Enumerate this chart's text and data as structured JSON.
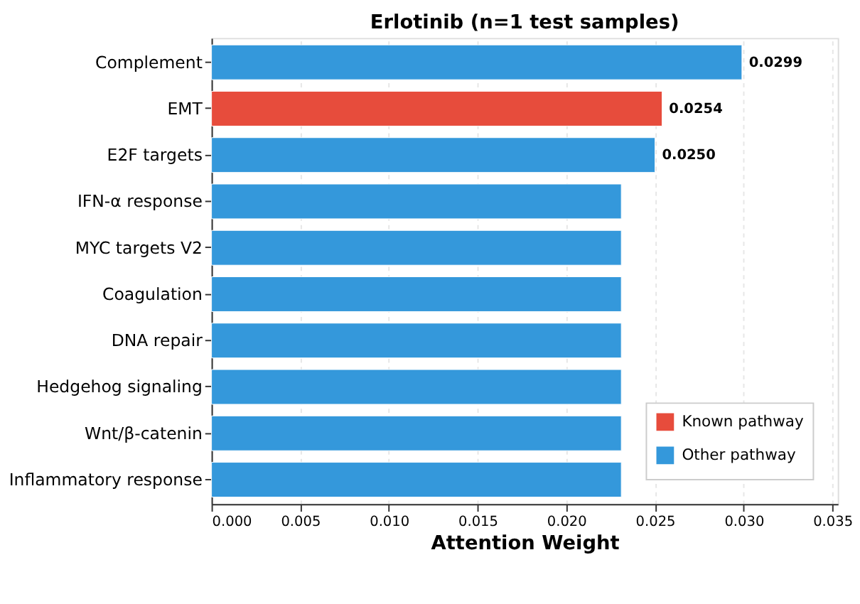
{
  "chart_data": {
    "type": "bar",
    "orientation": "horizontal",
    "title": "Erlotinib (n=1 test samples)",
    "xlabel": "Attention Weight",
    "categories": [
      "Complement",
      "EMT",
      "E2F targets",
      "IFN-α response",
      "MYC targets V2",
      "Coagulation",
      "DNA repair",
      "Hedgehog signaling",
      "Wnt/β-catenin",
      "Inflammatory response"
    ],
    "series": [
      {
        "name": "Known pathway",
        "color": "#e74c3c",
        "values": [
          null,
          0.0254,
          null,
          null,
          null,
          null,
          null,
          null,
          null,
          null
        ],
        "value_labels": [
          null,
          "0.0254",
          null,
          null,
          null,
          null,
          null,
          null,
          null,
          null
        ]
      },
      {
        "name": "Other pathway",
        "color": "#3498db",
        "values": [
          0.0299,
          null,
          0.025,
          0.0231,
          0.0231,
          0.0231,
          0.0231,
          0.0231,
          0.0231,
          0.0231
        ],
        "value_labels": [
          "0.0299",
          null,
          "0.0250",
          null,
          null,
          null,
          null,
          null,
          null,
          null
        ]
      }
    ],
    "xlim": [
      0,
      0.0353
    ],
    "xticks": [
      {
        "value": 0,
        "label": "0.000"
      },
      {
        "value": 0.005,
        "label": "0.005"
      },
      {
        "value": 0.01,
        "label": "0.010"
      },
      {
        "value": 0.015,
        "label": "0.015"
      },
      {
        "value": 0.02,
        "label": "0.020"
      },
      {
        "value": 0.025,
        "label": "0.025"
      },
      {
        "value": 0.03,
        "label": "0.030"
      },
      {
        "value": 0.035,
        "label": "0.035"
      }
    ],
    "grid": "x",
    "legend": "bottom right"
  }
}
